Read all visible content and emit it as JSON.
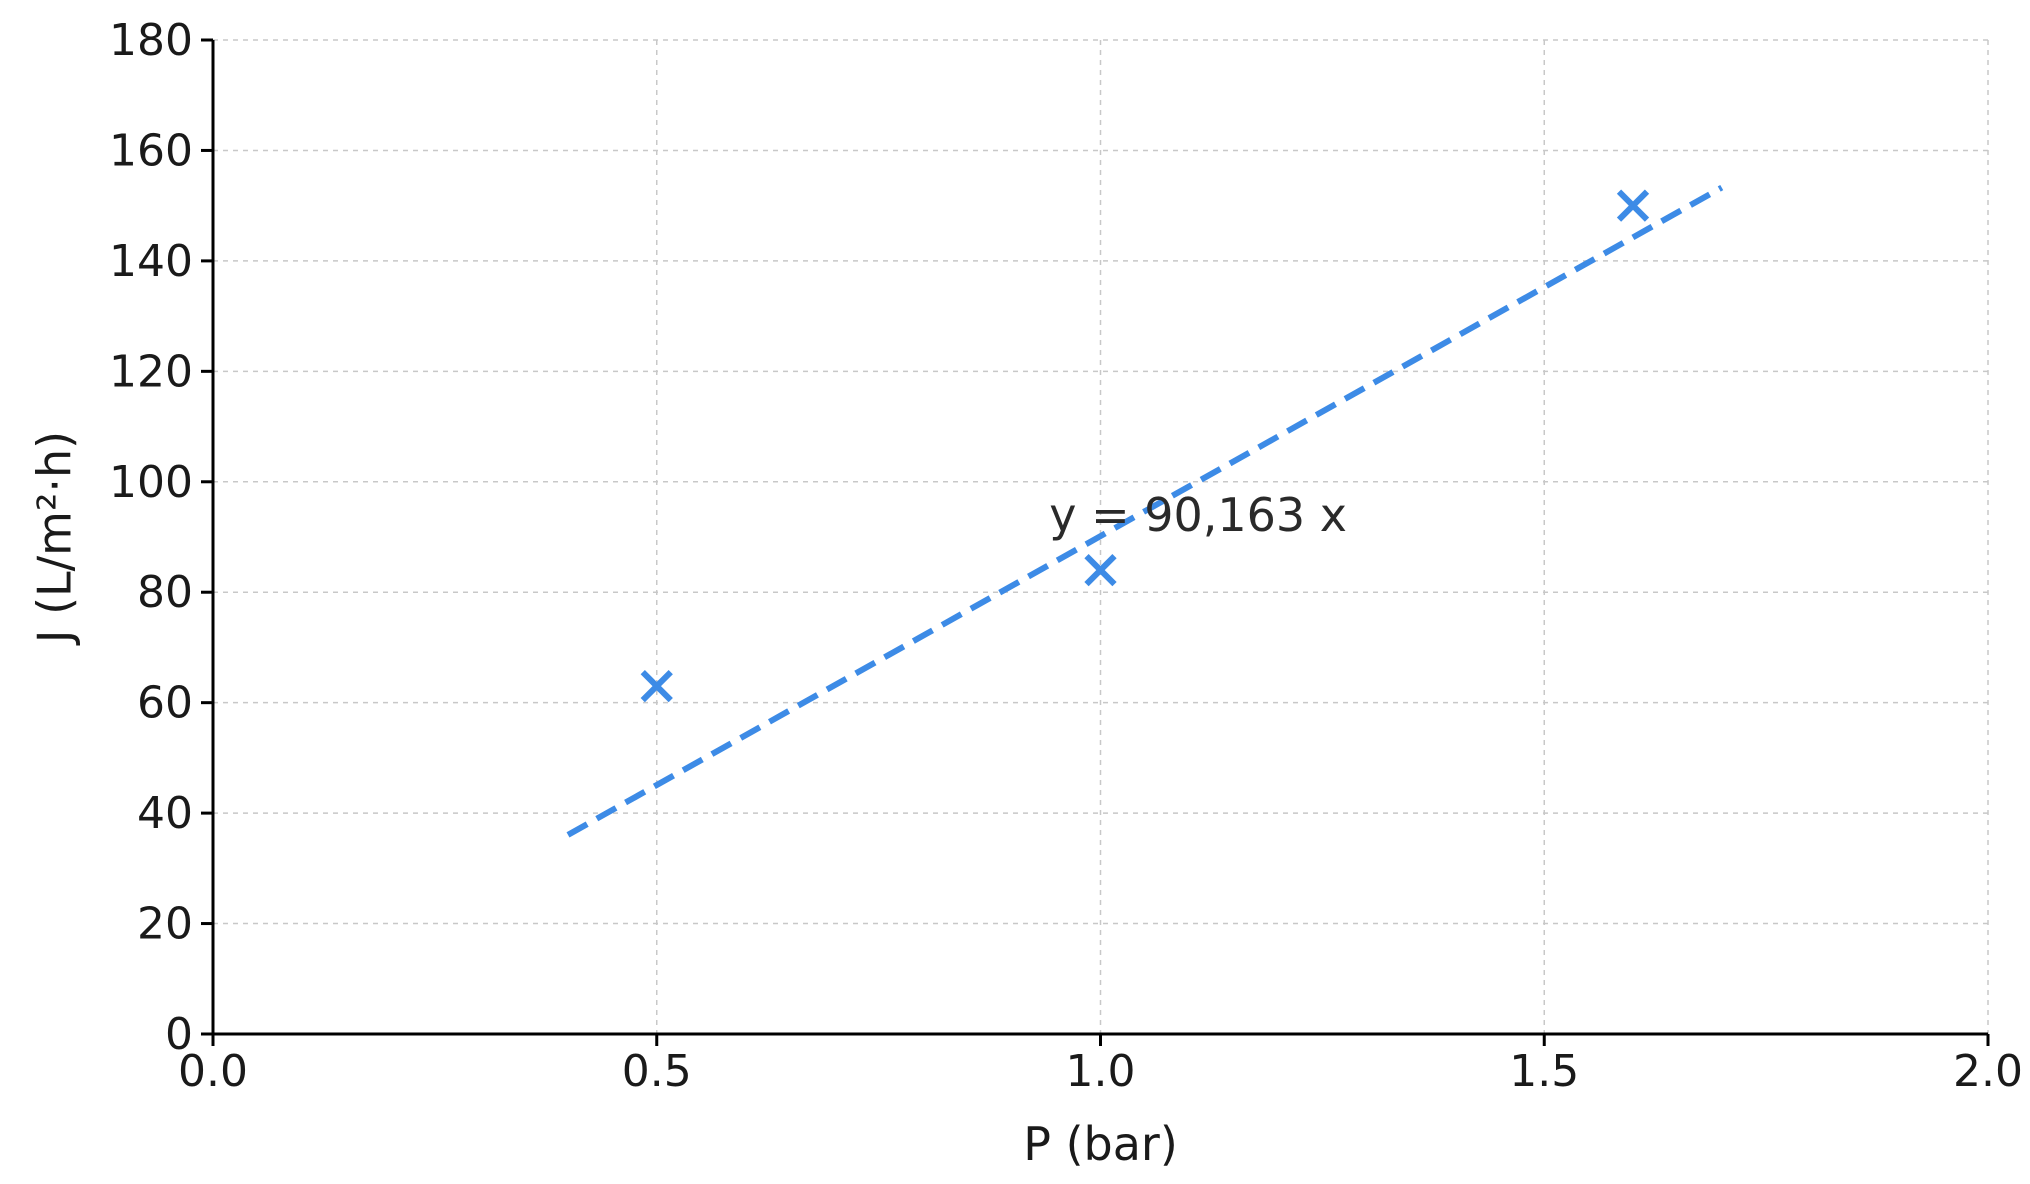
{
  "chart_data": {
    "type": "scatter",
    "title": "",
    "xlabel": "P (bar)",
    "ylabel": "J (L/m²·h)",
    "xlim": [
      0,
      2
    ],
    "ylim": [
      0,
      180
    ],
    "x_ticks": [
      0.0,
      0.5,
      1.0,
      1.5,
      2.0
    ],
    "x_tick_labels": [
      "0.0",
      "0.5",
      "1.0",
      "1.5",
      "2.0"
    ],
    "y_ticks": [
      0,
      20,
      40,
      60,
      80,
      100,
      120,
      140,
      160,
      180
    ],
    "y_tick_labels": [
      "0",
      "20",
      "40",
      "60",
      "80",
      "100",
      "120",
      "140",
      "160",
      "180"
    ],
    "grid": true,
    "series": [
      {
        "kind": "scatter",
        "marker": "x",
        "color": "#3d8be6",
        "x": [
          0.5,
          1.0,
          1.6
        ],
        "y": [
          63,
          84,
          150
        ]
      },
      {
        "kind": "line",
        "style": "dashed",
        "color": "#3d8be6",
        "slope": 90.163,
        "x_range": [
          0.4,
          1.7
        ]
      }
    ],
    "annotation": {
      "text": "y = 90,163 x",
      "x": 1.11,
      "y": 94
    }
  }
}
